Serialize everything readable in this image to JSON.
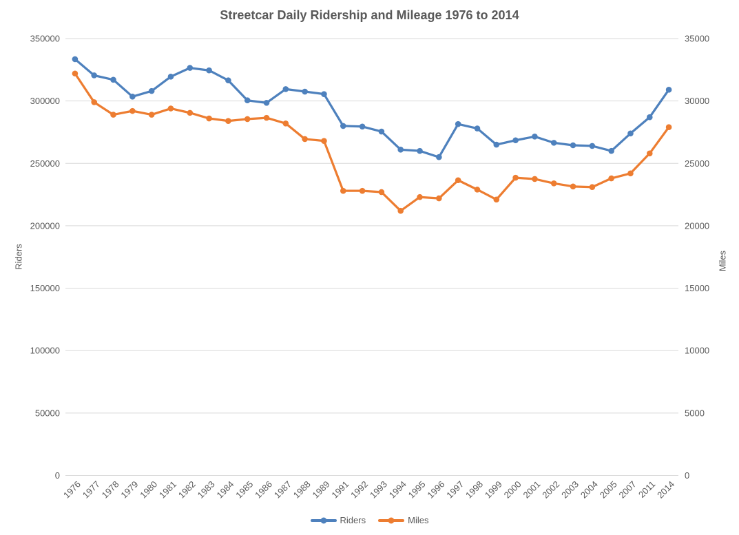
{
  "chart_data": {
    "type": "line",
    "title": "Streetcar Daily Ridership and Mileage 1976 to 2014",
    "categories": [
      "1976",
      "1977",
      "1978",
      "1979",
      "1980",
      "1981",
      "1982",
      "1983",
      "1984",
      "1985",
      "1986",
      "1987",
      "1988",
      "1989",
      "1991",
      "1992",
      "1993",
      "1994",
      "1995",
      "1996",
      "1997",
      "1998",
      "1999",
      "2000",
      "2001",
      "2002",
      "2003",
      "2004",
      "2005",
      "2007",
      "2011",
      "2014"
    ],
    "series": [
      {
        "name": "Riders",
        "axis": "left",
        "color": "#4E81BD",
        "values": [
          333500,
          320500,
          317000,
          303500,
          308000,
          319500,
          326500,
          324500,
          316500,
          300500,
          298500,
          309500,
          307500,
          305500,
          280000,
          279500,
          275500,
          261000,
          260000,
          255000,
          281500,
          278000,
          265000,
          268500,
          271500,
          266500,
          264500,
          264000,
          260000,
          274000,
          287000,
          309000
        ]
      },
      {
        "name": "Miles",
        "axis": "right",
        "color": "#ED7D31",
        "values": [
          32200,
          29900,
          28900,
          29200,
          28900,
          29400,
          29050,
          28600,
          28400,
          28550,
          28650,
          28200,
          26950,
          26800,
          22800,
          22800,
          22700,
          21200,
          22300,
          22200,
          23650,
          22900,
          22100,
          23850,
          23750,
          23400,
          23150,
          23100,
          23800,
          24200,
          25800,
          27900
        ]
      }
    ],
    "left_axis": {
      "label": "Riders",
      "range": [
        0,
        350000
      ],
      "ticks": [
        0,
        50000,
        100000,
        150000,
        200000,
        250000,
        300000,
        350000
      ]
    },
    "right_axis": {
      "label": "Miles",
      "range": [
        0,
        35000
      ],
      "ticks": [
        0,
        5000,
        10000,
        15000,
        20000,
        25000,
        30000,
        35000
      ]
    },
    "grid": true,
    "legend_position": "bottom",
    "colors": {
      "grid": "#D9D9D9",
      "text": "#595959",
      "background": "#FFFFFF"
    }
  }
}
